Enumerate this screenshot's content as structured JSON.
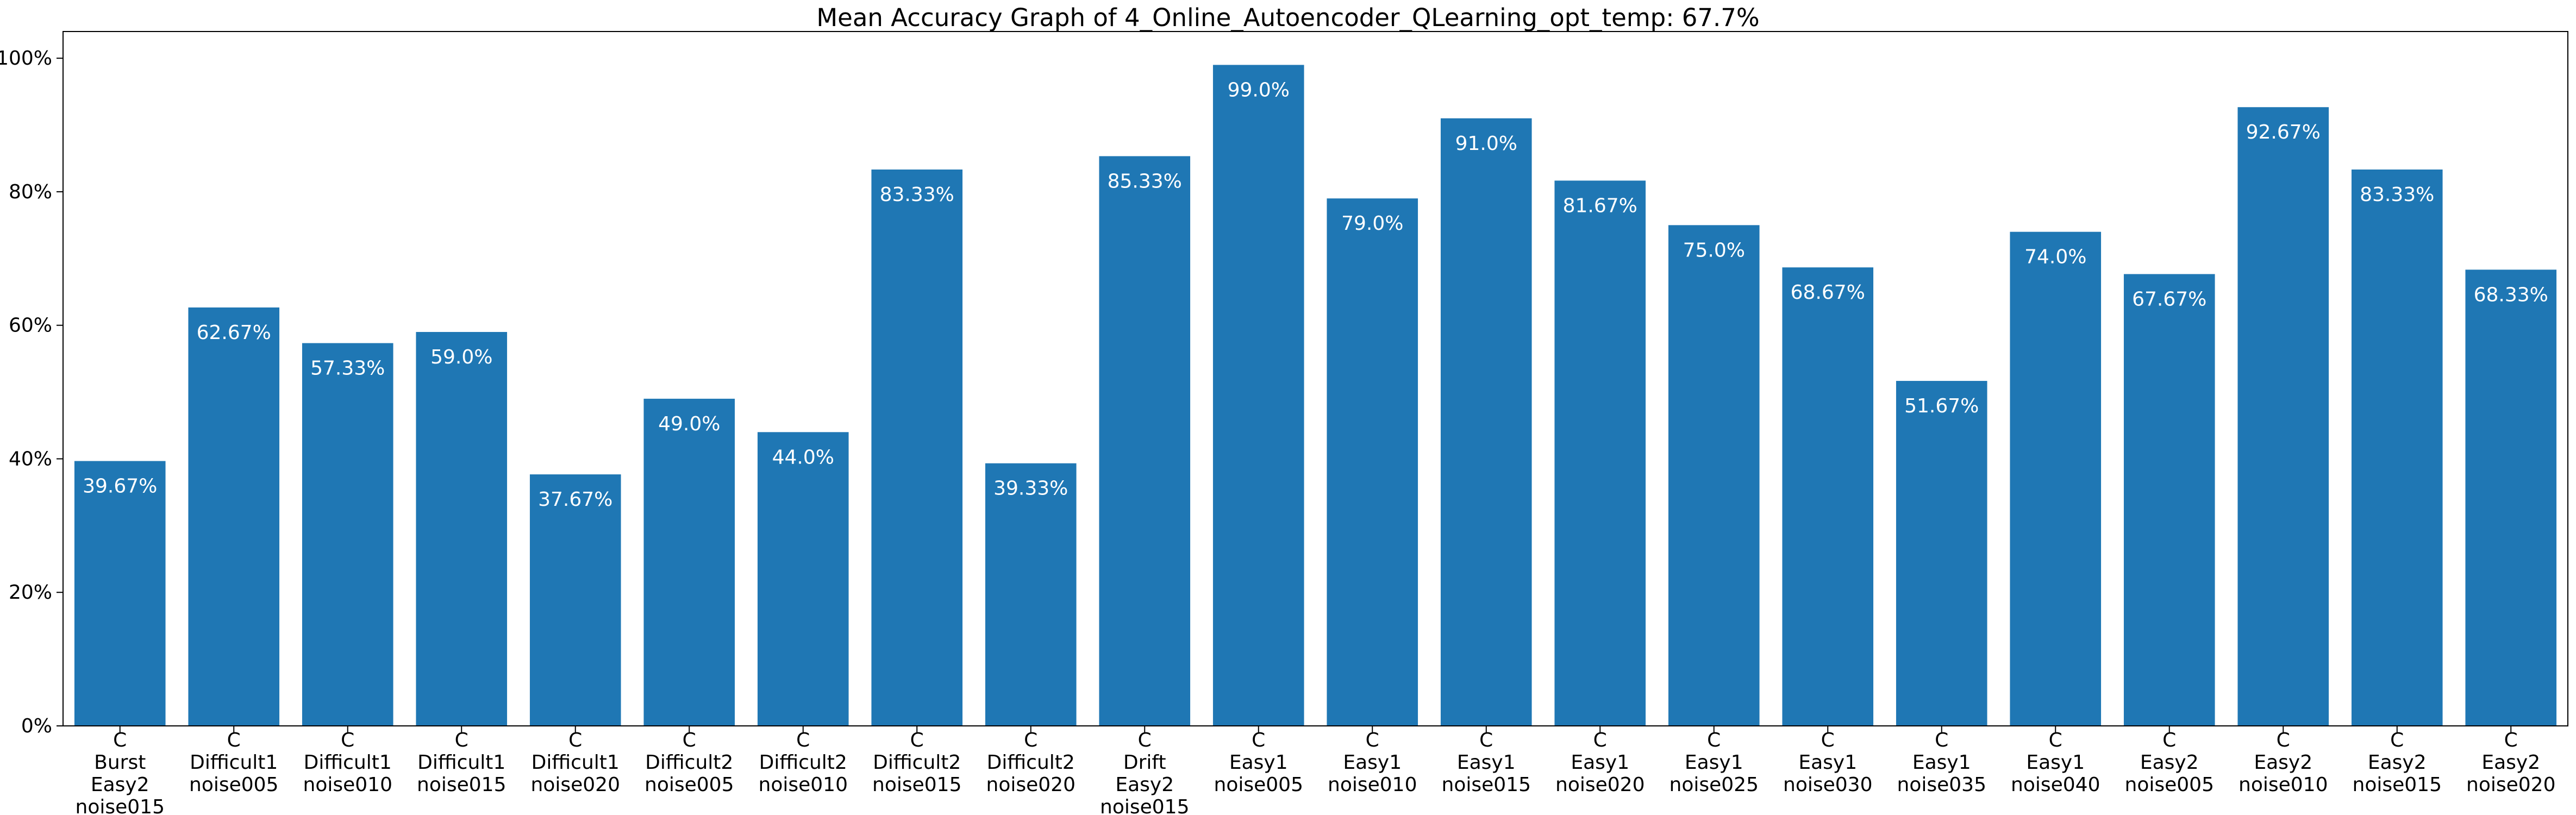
{
  "chart_data": {
    "type": "bar",
    "title": "Mean Accuracy Graph of 4_Online_Autoencoder_QLearning_opt_temp: 67.7%",
    "xlabel": "",
    "ylabel": "",
    "ylim": [
      0,
      104
    ],
    "yticks": [
      0,
      20,
      40,
      60,
      80,
      100
    ],
    "ytick_labels": [
      "0%",
      "20%",
      "40%",
      "60%",
      "80%",
      "100%"
    ],
    "grid": false,
    "bar_color": "#1f77b4",
    "categories": [
      [
        "C",
        "Burst",
        "Easy2",
        "noise015"
      ],
      [
        "C",
        "Difficult1",
        "noise005"
      ],
      [
        "C",
        "Difficult1",
        "noise010"
      ],
      [
        "C",
        "Difficult1",
        "noise015"
      ],
      [
        "C",
        "Difficult1",
        "noise020"
      ],
      [
        "C",
        "Difficult2",
        "noise005"
      ],
      [
        "C",
        "Difficult2",
        "noise010"
      ],
      [
        "C",
        "Difficult2",
        "noise015"
      ],
      [
        "C",
        "Difficult2",
        "noise020"
      ],
      [
        "C",
        "Drift",
        "Easy2",
        "noise015"
      ],
      [
        "C",
        "Easy1",
        "noise005"
      ],
      [
        "C",
        "Easy1",
        "noise010"
      ],
      [
        "C",
        "Easy1",
        "noise015"
      ],
      [
        "C",
        "Easy1",
        "noise020"
      ],
      [
        "C",
        "Easy1",
        "noise025"
      ],
      [
        "C",
        "Easy1",
        "noise030"
      ],
      [
        "C",
        "Easy1",
        "noise035"
      ],
      [
        "C",
        "Easy1",
        "noise040"
      ],
      [
        "C",
        "Easy2",
        "noise005"
      ],
      [
        "C",
        "Easy2",
        "noise010"
      ],
      [
        "C",
        "Easy2",
        "noise015"
      ],
      [
        "C",
        "Easy2",
        "noise020"
      ]
    ],
    "values": [
      39.67,
      62.67,
      57.33,
      59.0,
      37.67,
      49.0,
      44.0,
      83.33,
      39.33,
      85.33,
      99.0,
      79.0,
      91.0,
      81.67,
      75.0,
      68.67,
      51.67,
      74.0,
      67.67,
      92.67,
      83.33,
      68.33
    ],
    "data_labels": [
      "39.67%",
      "62.67%",
      "57.33%",
      "59.0%",
      "37.67%",
      "49.0%",
      "44.0%",
      "83.33%",
      "39.33%",
      "85.33%",
      "99.0%",
      "79.0%",
      "91.0%",
      "81.67%",
      "75.0%",
      "68.67%",
      "51.67%",
      "74.0%",
      "67.67%",
      "92.67%",
      "83.33%",
      "68.33%"
    ]
  }
}
